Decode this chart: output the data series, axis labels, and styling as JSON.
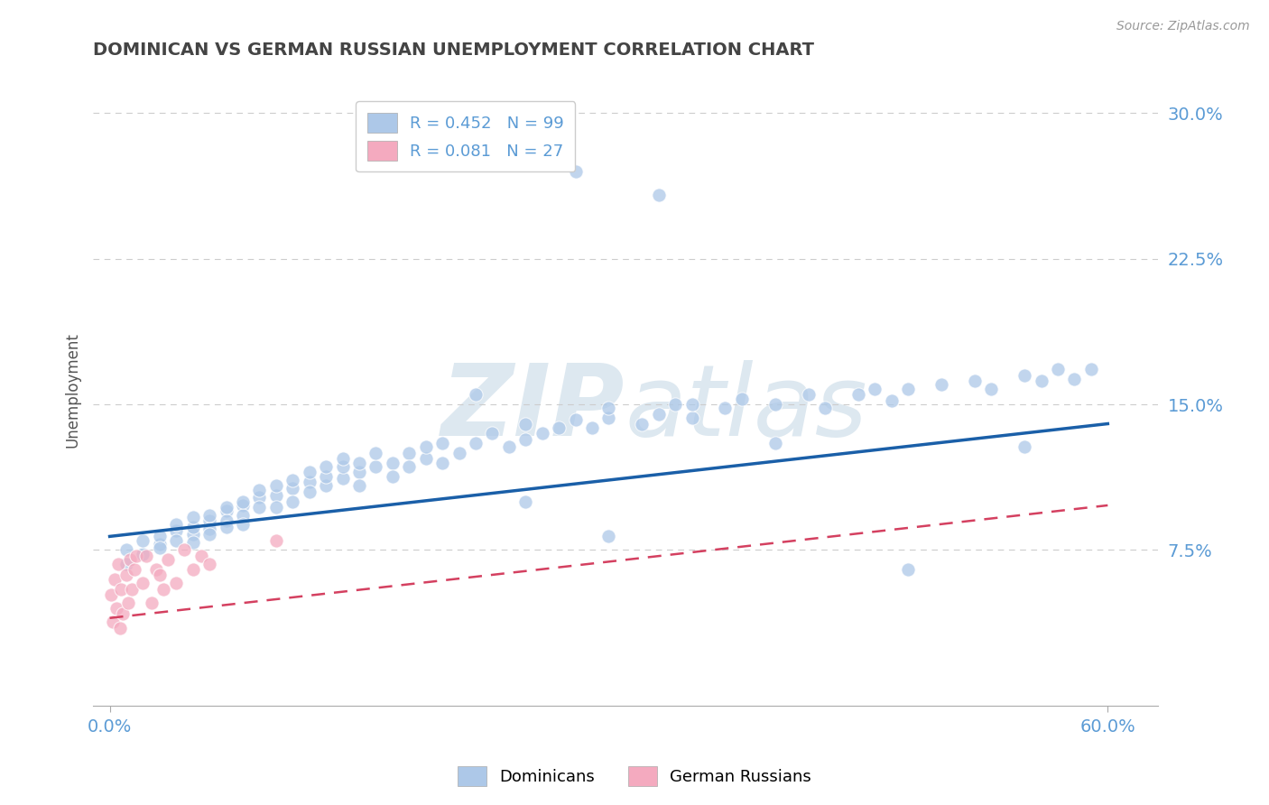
{
  "title": "DOMINICAN VS GERMAN RUSSIAN UNEMPLOYMENT CORRELATION CHART",
  "source": "Source: ZipAtlas.com",
  "ylabel_label": "Unemployment",
  "xlim": [
    -0.01,
    0.63
  ],
  "ylim": [
    -0.005,
    0.32
  ],
  "yticks": [
    0.075,
    0.15,
    0.225,
    0.3
  ],
  "ytick_labels": [
    "7.5%",
    "15.0%",
    "22.5%",
    "30.0%"
  ],
  "xtick_labels": [
    "0.0%",
    "60.0%"
  ],
  "legend1_label": "R = 0.452   N = 99",
  "legend2_label": "R = 0.081   N = 27",
  "dominican_color": "#adc8e8",
  "german_russian_color": "#f4aabf",
  "trend_dominican_color": "#1a5fa8",
  "trend_german_color": "#d44060",
  "dominican_x": [
    0.01,
    0.01,
    0.02,
    0.02,
    0.03,
    0.03,
    0.03,
    0.04,
    0.04,
    0.04,
    0.05,
    0.05,
    0.05,
    0.05,
    0.06,
    0.06,
    0.06,
    0.06,
    0.07,
    0.07,
    0.07,
    0.07,
    0.08,
    0.08,
    0.08,
    0.08,
    0.09,
    0.09,
    0.09,
    0.1,
    0.1,
    0.1,
    0.11,
    0.11,
    0.11,
    0.12,
    0.12,
    0.12,
    0.13,
    0.13,
    0.13,
    0.14,
    0.14,
    0.14,
    0.15,
    0.15,
    0.15,
    0.16,
    0.16,
    0.17,
    0.17,
    0.18,
    0.18,
    0.19,
    0.19,
    0.2,
    0.2,
    0.21,
    0.22,
    0.23,
    0.24,
    0.25,
    0.25,
    0.26,
    0.27,
    0.28,
    0.29,
    0.3,
    0.3,
    0.32,
    0.33,
    0.34,
    0.35,
    0.37,
    0.38,
    0.4,
    0.42,
    0.43,
    0.45,
    0.46,
    0.47,
    0.48,
    0.5,
    0.52,
    0.53,
    0.55,
    0.56,
    0.57,
    0.58,
    0.59,
    0.28,
    0.33,
    0.35,
    0.22,
    0.25,
    0.3,
    0.4,
    0.48,
    0.55
  ],
  "dominican_y": [
    0.068,
    0.075,
    0.073,
    0.08,
    0.078,
    0.082,
    0.076,
    0.085,
    0.08,
    0.088,
    0.083,
    0.087,
    0.092,
    0.079,
    0.09,
    0.086,
    0.093,
    0.083,
    0.095,
    0.09,
    0.097,
    0.087,
    0.098,
    0.093,
    0.1,
    0.088,
    0.102,
    0.097,
    0.106,
    0.103,
    0.108,
    0.097,
    0.107,
    0.111,
    0.1,
    0.11,
    0.105,
    0.115,
    0.108,
    0.113,
    0.118,
    0.112,
    0.118,
    0.122,
    0.115,
    0.12,
    0.108,
    0.118,
    0.125,
    0.12,
    0.113,
    0.125,
    0.118,
    0.122,
    0.128,
    0.12,
    0.13,
    0.125,
    0.13,
    0.135,
    0.128,
    0.132,
    0.14,
    0.135,
    0.138,
    0.142,
    0.138,
    0.143,
    0.148,
    0.14,
    0.145,
    0.15,
    0.143,
    0.148,
    0.153,
    0.15,
    0.155,
    0.148,
    0.155,
    0.158,
    0.152,
    0.158,
    0.16,
    0.162,
    0.158,
    0.165,
    0.162,
    0.168,
    0.163,
    0.168,
    0.27,
    0.258,
    0.15,
    0.155,
    0.1,
    0.082,
    0.13,
    0.065,
    0.128
  ],
  "german_russian_x": [
    0.001,
    0.002,
    0.003,
    0.004,
    0.005,
    0.006,
    0.007,
    0.008,
    0.01,
    0.011,
    0.012,
    0.013,
    0.015,
    0.016,
    0.02,
    0.022,
    0.025,
    0.028,
    0.03,
    0.032,
    0.035,
    0.04,
    0.045,
    0.05,
    0.055,
    0.06,
    0.1
  ],
  "german_russian_y": [
    0.052,
    0.038,
    0.06,
    0.045,
    0.068,
    0.035,
    0.055,
    0.042,
    0.062,
    0.048,
    0.07,
    0.055,
    0.065,
    0.072,
    0.058,
    0.072,
    0.048,
    0.065,
    0.062,
    0.055,
    0.07,
    0.058,
    0.075,
    0.065,
    0.072,
    0.068,
    0.08
  ],
  "background_color": "#ffffff",
  "grid_color": "#cccccc",
  "tick_label_color": "#5b9bd5",
  "title_color": "#444444",
  "watermark_color": "#e8eef4"
}
